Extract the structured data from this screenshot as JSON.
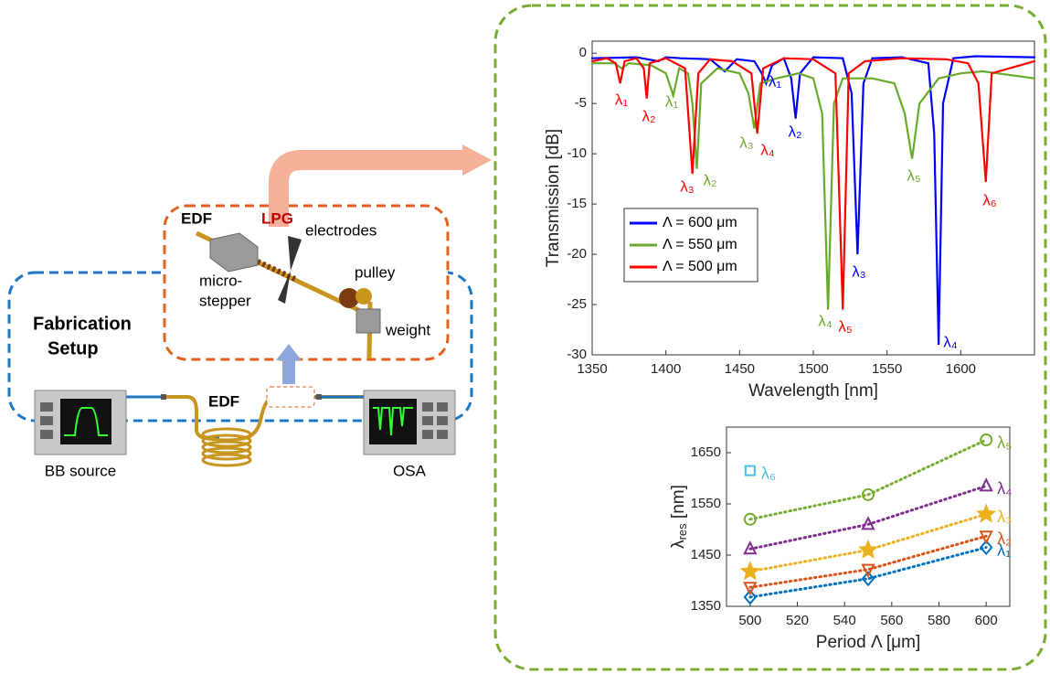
{
  "diagram": {
    "labels": {
      "edf_top": "EDF",
      "lpg": "LPG",
      "electrodes": "electrodes",
      "microstepper": [
        "micro-",
        "stepper"
      ],
      "pulley": "pulley",
      "weight": "weight",
      "setup_title": [
        "Fabrication",
        "Setup"
      ],
      "edf_bottom": "EDF",
      "bb_source": "BB source",
      "osa": "OSA"
    }
  },
  "chart_data": [
    {
      "type": "line",
      "x_label": "Wavelength [nm]",
      "y_label": "Transmission [dB]",
      "xlim": [
        1350,
        1650
      ],
      "ylim": [
        -30,
        1.2
      ],
      "xticks": [
        1350,
        1400,
        1450,
        1500,
        1550,
        1600
      ],
      "yticks": [
        -30,
        -25,
        -20,
        -15,
        -10,
        -5,
        0
      ],
      "legend": "center left",
      "series": [
        {
          "name": "Λ = 600 μm",
          "color": "#0000ff",
          "x": [
            1350,
            1380,
            1395,
            1400,
            1410,
            1430,
            1440,
            1448,
            1460,
            1465,
            1468,
            1472,
            1480,
            1485,
            1488,
            1491,
            1500,
            1520,
            1526,
            1530,
            1534,
            1540,
            1560,
            1578,
            1582,
            1585,
            1588,
            1595,
            1610,
            1650
          ],
          "values": [
            -0.5,
            -0.4,
            -0.8,
            -0.4,
            -0.5,
            -0.6,
            -1.8,
            -0.6,
            -0.8,
            -2,
            -3,
            -1.2,
            -0.5,
            -2.5,
            -6.5,
            -2,
            -0.4,
            -0.5,
            -4,
            -20,
            -3,
            -0.5,
            -0.4,
            -1,
            -8,
            -29,
            -5,
            -0.5,
            -0.3,
            -0.4
          ]
        },
        {
          "name": "Λ = 550 μm",
          "color": "#6aaa2a",
          "x": [
            1350,
            1365,
            1370,
            1375,
            1390,
            1400,
            1405,
            1409,
            1415,
            1418,
            1421,
            1424,
            1435,
            1450,
            1456,
            1460,
            1464,
            1475,
            1490,
            1500,
            1506,
            1510,
            1514,
            1520,
            1540,
            1555,
            1562,
            1567,
            1572,
            1585,
            1600,
            1615,
            1650
          ],
          "values": [
            -1,
            -1,
            -1.5,
            -1,
            -1.2,
            -2,
            -4.2,
            -1.5,
            -2,
            -5,
            -11.5,
            -3,
            -1.5,
            -2,
            -4,
            -7.5,
            -3,
            -2.5,
            -2,
            -2.5,
            -6,
            -25.5,
            -5,
            -2.5,
            -2.5,
            -3,
            -6,
            -10.5,
            -5,
            -2.5,
            -2,
            -1.8,
            -2.5
          ]
        },
        {
          "name": "Λ = 500 μm",
          "color": "#ff0000",
          "x": [
            1350,
            1360,
            1366,
            1369,
            1372,
            1380,
            1385,
            1387,
            1389,
            1400,
            1413,
            1418,
            1422,
            1430,
            1445,
            1458,
            1462,
            1466,
            1480,
            1500,
            1515,
            1520,
            1524,
            1535,
            1560,
            1590,
            1605,
            1612,
            1617,
            1621,
            1650
          ],
          "values": [
            -0.8,
            -0.5,
            -1,
            -3,
            -0.8,
            -0.5,
            -1.5,
            -4.5,
            -1,
            -0.5,
            -1.5,
            -12,
            -2,
            -0.6,
            -0.8,
            -2,
            -8,
            -1.5,
            -0.5,
            -0.6,
            -2,
            -25.5,
            -2,
            -0.8,
            -0.5,
            -0.6,
            -1,
            -3,
            -12.8,
            -2,
            -0.8
          ]
        }
      ],
      "annotations": [
        {
          "text": "λ₁",
          "color": "#ff0000"
        },
        {
          "text": "λ₂",
          "color": "#ff0000"
        },
        {
          "text": "λ₁",
          "color": "#6aaa2a"
        },
        {
          "text": "λ₃",
          "color": "#ff0000"
        },
        {
          "text": "λ₂",
          "color": "#6aaa2a"
        },
        {
          "text": "λ₃",
          "color": "#6aaa2a"
        },
        {
          "text": "λ₄",
          "color": "#ff0000"
        },
        {
          "text": "λ₁",
          "color": "#0000ff"
        },
        {
          "text": "λ₂",
          "color": "#0000ff"
        },
        {
          "text": "λ₃",
          "color": "#0000ff"
        },
        {
          "text": "λ₄",
          "color": "#6aaa2a"
        },
        {
          "text": "λ₅",
          "color": "#ff0000"
        },
        {
          "text": "λ₄",
          "color": "#0000ff"
        },
        {
          "text": "λ₅",
          "color": "#6aaa2a"
        },
        {
          "text": "λ₆",
          "color": "#ff0000"
        }
      ]
    },
    {
      "type": "line",
      "x_label": "Period Λ [μm]",
      "y_label": {
        "symbol": "λ",
        "subscript": "res",
        "unit": " [nm]"
      },
      "xlim": [
        490,
        610
      ],
      "ylim": [
        1350,
        1700
      ],
      "xticks": [
        500,
        520,
        540,
        560,
        580,
        600
      ],
      "yticks": [
        1350,
        1450,
        1550,
        1650
      ],
      "line_style": "dotted",
      "x": [
        500,
        550,
        600
      ],
      "series": [
        {
          "name": "λ₁",
          "color": "#0072bd",
          "marker": "diamond",
          "values": [
            1368,
            1404,
            1465
          ]
        },
        {
          "name": "λ₂",
          "color": "#d95319",
          "marker": "triangle-down",
          "values": [
            1387,
            1422,
            1487
          ]
        },
        {
          "name": "λ₃",
          "color": "#edb120",
          "marker": "star",
          "values": [
            1418,
            1460,
            1530
          ]
        },
        {
          "name": "λ₄",
          "color": "#7e2f8e",
          "marker": "triangle-up",
          "values": [
            1462,
            1510,
            1585
          ]
        },
        {
          "name": "λ₅",
          "color": "#77ac30",
          "marker": "circle",
          "values": [
            1520,
            1568,
            1675
          ]
        },
        {
          "name": "λ₆",
          "color": "#4dbeee",
          "marker": "square",
          "values": [
            1615,
            null,
            null
          ]
        }
      ]
    }
  ]
}
